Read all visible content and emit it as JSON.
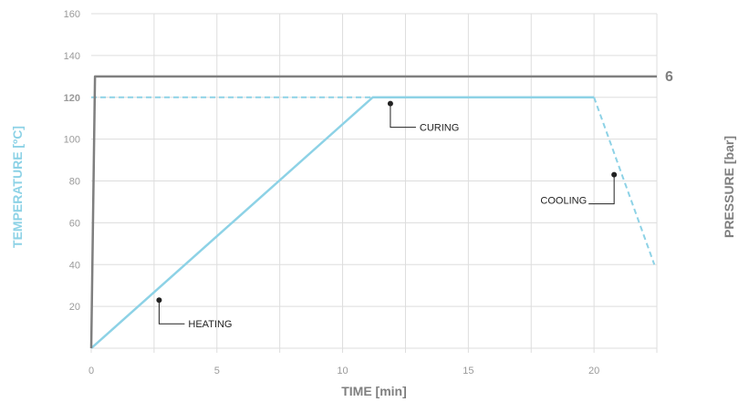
{
  "chart_data": {
    "type": "line",
    "xlabel": "TIME [min]",
    "ylabel": "TEMPERATURE [ºC]",
    "y2label": "PRESSURE [bar]",
    "xlim": [
      0,
      22.5
    ],
    "ylim": [
      0,
      160
    ],
    "x_ticks": [
      0,
      5,
      10,
      15,
      20
    ],
    "y_ticks": [
      20,
      40,
      60,
      80,
      100,
      120,
      140,
      160
    ],
    "highlight_y_tick": "120",
    "pressure_label": "6",
    "grid": true,
    "series": [
      {
        "axis": "temperature",
        "style": "solid",
        "x": [
          0,
          11.2,
          20
        ],
        "y": [
          0,
          120,
          120
        ]
      },
      {
        "axis": "temperature",
        "style": "dashed",
        "x": [
          0,
          11.2
        ],
        "y": [
          120,
          120
        ]
      },
      {
        "axis": "temperature",
        "style": "dashed",
        "x": [
          20,
          22.4
        ],
        "y": [
          120,
          40
        ]
      },
      {
        "axis": "pressure",
        "style": "solid",
        "x": [
          0,
          0.15,
          22.5
        ],
        "y": [
          0,
          130,
          130
        ]
      }
    ],
    "annotations": [
      {
        "text": "HEATING",
        "x": 2.7,
        "y": 23
      },
      {
        "text": "CURING",
        "x": 11.9,
        "y": 117
      },
      {
        "text": "COOLING",
        "x": 20.8,
        "y": 83
      }
    ],
    "colors": {
      "temperature": "#8dd2e6",
      "pressure": "#7f7f7f",
      "grid": "#dddddd",
      "tick": "#9a9a9a"
    }
  }
}
